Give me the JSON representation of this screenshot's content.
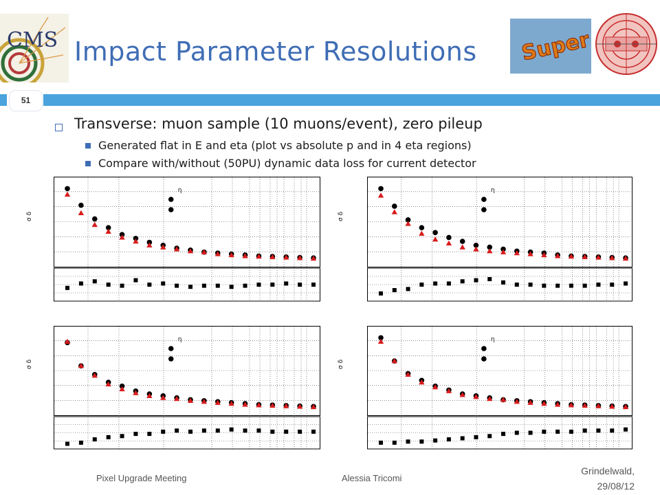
{
  "header": {
    "title": "Impact Parameter Resolutions",
    "slide_number": "51",
    "cms_logo_text": "CMS",
    "super_logo_text": "Super"
  },
  "bullets": {
    "main": "Transverse: muon sample (10 muons/event), zero pileup",
    "sub1": "Generated flat in E and eta (plot vs absolute p and in 4 eta regions)",
    "sub2": "Compare with/without (50PU) dynamic data loss for current detector"
  },
  "footer": {
    "meeting": "Pixel Upgrade Meeting",
    "author": "Alessia Tricomi",
    "place": "Grindelwald,",
    "date": "29/08/12"
  },
  "colors": {
    "title": "#3f6db5",
    "accent_bar": "#4aa3dc",
    "marker_black": "#000000",
    "marker_red": "#d81c1c"
  },
  "chart_data": [
    {
      "type": "scatter",
      "ylabel": "σ δ",
      "legend_text": "η",
      "legend_placement": "top-center",
      "grid": true,
      "series": [
        {
          "marker": "circle",
          "color": "#000000",
          "values": [
            100,
            83,
            69,
            60,
            53,
            49,
            45,
            42,
            39,
            37,
            35,
            34,
            33,
            32,
            31,
            30.5,
            30,
            29.5,
            29
          ]
        },
        {
          "marker": "triangle",
          "color": "#d81c1c",
          "values": [
            94,
            75,
            63,
            56,
            50,
            46,
            42,
            40,
            38,
            36,
            35,
            33,
            32,
            31,
            30.5,
            30,
            29.5,
            29,
            28.5
          ]
        }
      ],
      "ratio": {
        "marker": "square",
        "values": [
          -3,
          1,
          3,
          0,
          -1,
          4,
          0,
          1,
          -1,
          -2,
          -1,
          -1,
          -2,
          -1,
          0,
          0,
          1,
          0,
          0
        ]
      }
    },
    {
      "type": "scatter",
      "ylabel": "σ δ",
      "legend_text": "η",
      "legend_placement": "top-center",
      "grid": true,
      "series": [
        {
          "marker": "circle",
          "color": "#000000",
          "values": [
            100,
            82,
            68,
            60,
            55,
            50,
            46,
            42,
            40,
            38,
            36,
            35,
            34,
            32,
            31,
            30.5,
            30,
            29.5,
            29
          ]
        },
        {
          "marker": "triangle",
          "color": "#d81c1c",
          "values": [
            93,
            76,
            64,
            54,
            48,
            44,
            40,
            38,
            36,
            35,
            34,
            33,
            32,
            31,
            30.5,
            30,
            29.5,
            29,
            28.5
          ]
        }
      ],
      "ratio": {
        "marker": "square",
        "values": [
          -8,
          -5,
          -4,
          0,
          1,
          1,
          3,
          4,
          5,
          2,
          0,
          0,
          -1,
          -1,
          -1,
          -1,
          0,
          0,
          1
        ]
      }
    },
    {
      "type": "scatter",
      "ylabel": "σ δ",
      "legend_text": "η",
      "legend_placement": "top-center",
      "grid": true,
      "series": [
        {
          "marker": "circle",
          "color": "#000000",
          "values": [
            95,
            71,
            62,
            54,
            50,
            45,
            42,
            40,
            38,
            36,
            35,
            34,
            33,
            32,
            31,
            30.5,
            30,
            29.5,
            29
          ]
        },
        {
          "marker": "triangle",
          "color": "#d81c1c",
          "values": [
            96,
            71,
            61,
            52,
            47,
            43,
            40,
            38,
            37,
            35,
            34,
            33,
            32,
            31,
            30.5,
            30,
            29.5,
            29,
            28.5
          ]
        }
      ],
      "ratio": {
        "marker": "square",
        "values": [
          -10,
          -9,
          -6,
          -4,
          -3,
          -1,
          -1,
          1,
          2,
          1,
          2,
          2,
          3,
          2,
          2,
          1,
          1,
          1,
          1
        ]
      }
    },
    {
      "type": "scatter",
      "ylabel": "σ δ",
      "legend_text": "η",
      "legend_placement": "top-center",
      "grid": true,
      "series": [
        {
          "marker": "circle",
          "color": "#000000",
          "values": [
            100,
            76,
            63,
            56,
            50,
            46,
            42,
            40,
            38,
            36,
            35,
            34,
            33,
            32,
            31,
            30.5,
            30,
            29.5,
            29
          ]
        },
        {
          "marker": "triangle",
          "color": "#d81c1c",
          "values": [
            96,
            76,
            62,
            54,
            49,
            45,
            41,
            39,
            37,
            36,
            34,
            33,
            32,
            31,
            30.5,
            30,
            29.5,
            29,
            28.5
          ]
        }
      ],
      "ratio": {
        "marker": "square",
        "values": [
          -9,
          -9,
          -8,
          -8,
          -7,
          -6,
          -5,
          -4,
          -3,
          -1,
          0,
          0,
          1,
          1,
          1,
          2,
          2,
          2,
          3
        ]
      }
    }
  ]
}
